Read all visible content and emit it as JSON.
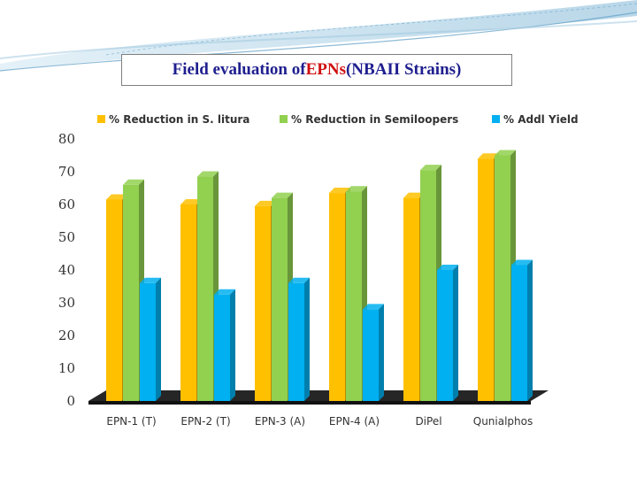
{
  "title": {
    "prefix": "Field evaluation of ",
    "highlight": "EPNs",
    "suffix": " (NBAII Strains)",
    "highlight_color": "#d01010",
    "text_color": "#1f1f8f"
  },
  "chart_data": {
    "type": "bar",
    "title": "Field evaluation of EPNs (NBAII Strains)",
    "categories": [
      "EPN-1 (T)",
      "EPN-2 (T)",
      "EPN-3 (A)",
      "EPN-4 (A)",
      "DiPel",
      "Qunialphos"
    ],
    "series": [
      {
        "name": "% Reduction in S. litura",
        "color": "#ffc000",
        "values": [
          61.5,
          60,
          59.5,
          63.5,
          62,
          74
        ]
      },
      {
        "name": "% Reduction in Semiloopers",
        "color": "#92d050",
        "values": [
          66,
          68.5,
          62,
          64,
          70.5,
          75
        ]
      },
      {
        "name": "% Addl Yield",
        "color": "#00b0f0",
        "values": [
          36,
          32.5,
          36,
          28,
          40,
          41.5
        ]
      }
    ],
    "ylim": [
      0,
      80
    ],
    "yticks": [
      "0",
      "10",
      "20",
      "30",
      "40",
      "50",
      "60",
      "70",
      "80"
    ],
    "xlabel": "",
    "ylabel": "",
    "legend": "top",
    "grid": false
  }
}
